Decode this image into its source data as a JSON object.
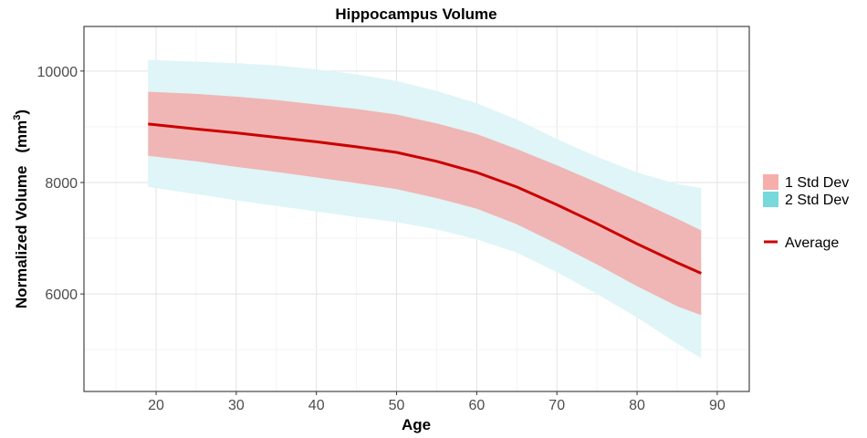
{
  "chart_data": {
    "type": "line",
    "title": "Hippocampus Volume",
    "xlabel": "Age",
    "ylabel": "Normalized Volume (mm³)",
    "ylabel_main": "Normalized Volume",
    "ylabel_unit_base": "(mm",
    "ylabel_unit_sup": "3",
    "ylabel_unit_close": ")",
    "xlim": [
      11,
      94
    ],
    "ylim": [
      4250,
      10800
    ],
    "x_ticks": [
      20,
      30,
      40,
      50,
      60,
      70,
      80,
      90
    ],
    "y_ticks": [
      6000,
      8000,
      10000
    ],
    "x_tick_labels": [
      "20",
      "30",
      "40",
      "50",
      "60",
      "70",
      "80",
      "90"
    ],
    "y_tick_labels": [
      "6000",
      "8000",
      "10000"
    ],
    "grid": true,
    "legend_position": "right",
    "x": [
      19,
      25,
      30,
      35,
      40,
      45,
      50,
      55,
      60,
      65,
      70,
      75,
      80,
      85,
      88
    ],
    "series": [
      {
        "name": "Average",
        "color": "#cc0000",
        "values": [
          9050,
          8960,
          8890,
          8810,
          8730,
          8640,
          8540,
          8380,
          8180,
          7920,
          7600,
          7260,
          6900,
          6560,
          6370
        ]
      }
    ],
    "bands": [
      {
        "name": "2 Std Dev",
        "color": "#dff5f7",
        "legend_color": "#77d9dc",
        "upper": [
          10200,
          10170,
          10140,
          10100,
          10030,
          9940,
          9820,
          9640,
          9420,
          9130,
          8780,
          8460,
          8180,
          7970,
          7900
        ],
        "lower": [
          7920,
          7790,
          7680,
          7580,
          7480,
          7380,
          7290,
          7160,
          6980,
          6740,
          6390,
          6000,
          5580,
          5110,
          4850
        ]
      },
      {
        "name": "1 Std Dev",
        "color": "#efb6b5",
        "legend_color": "#f6aeab",
        "upper": [
          9630,
          9590,
          9540,
          9480,
          9400,
          9320,
          9220,
          9060,
          8870,
          8600,
          8310,
          8000,
          7680,
          7350,
          7140
        ],
        "lower": [
          8480,
          8380,
          8280,
          8190,
          8090,
          7990,
          7880,
          7720,
          7530,
          7250,
          6900,
          6530,
          6140,
          5780,
          5620
        ]
      }
    ],
    "legend": [
      {
        "label": "1 Std Dev",
        "kind": "fill",
        "color": "#f6aeab"
      },
      {
        "label": "2 Std Dev",
        "kind": "fill",
        "color": "#77d9dc"
      },
      {
        "label": "Average",
        "kind": "line",
        "color": "#cc0000"
      }
    ]
  }
}
